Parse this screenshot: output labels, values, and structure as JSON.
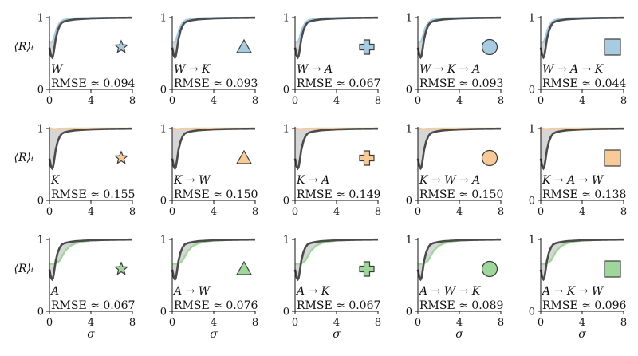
{
  "colors": {
    "W": "#a7cbe0",
    "K": "#f7ca98",
    "A": "#9fd69a",
    "reference": "#4b4b4b",
    "shade": "#cfcfcf"
  },
  "chart_data": {
    "type": "line",
    "layout": "grid 3 rows x 5 columns",
    "row_ylabel": "⟨R⟩ₜ",
    "xlabel": "σ",
    "xlim": [
      0,
      8
    ],
    "ylim": [
      0,
      1
    ],
    "xticks": [
      "0",
      "4",
      "8"
    ],
    "yticks": [
      "0",
      "1"
    ],
    "panels": [
      {
        "row": 0,
        "col": 0,
        "label": "W",
        "rmse": "RMSE ≈ 0.094",
        "color_key": "W",
        "marker": "star"
      },
      {
        "row": 0,
        "col": 1,
        "label": "W → K",
        "rmse": "RMSE ≈ 0.093",
        "color_key": "W",
        "marker": "triangle"
      },
      {
        "row": 0,
        "col": 2,
        "label": "W → A",
        "rmse": "RMSE ≈ 0.067",
        "color_key": "W",
        "marker": "plus"
      },
      {
        "row": 0,
        "col": 3,
        "label": "W → K → A",
        "rmse": "RMSE ≈ 0.093",
        "color_key": "W",
        "marker": "circle"
      },
      {
        "row": 0,
        "col": 4,
        "label": "W → A → K",
        "rmse": "RMSE ≈ 0.044",
        "color_key": "W",
        "marker": "square"
      },
      {
        "row": 1,
        "col": 0,
        "label": "K",
        "rmse": "RMSE ≈ 0.155",
        "color_key": "K",
        "marker": "star"
      },
      {
        "row": 1,
        "col": 1,
        "label": "K → W",
        "rmse": "RMSE ≈ 0.150",
        "color_key": "K",
        "marker": "triangle"
      },
      {
        "row": 1,
        "col": 2,
        "label": "K → A",
        "rmse": "RMSE ≈ 0.149",
        "color_key": "K",
        "marker": "plus"
      },
      {
        "row": 1,
        "col": 3,
        "label": "K → W → A",
        "rmse": "RMSE ≈ 0.150",
        "color_key": "K",
        "marker": "circle"
      },
      {
        "row": 1,
        "col": 4,
        "label": "K → A → W",
        "rmse": "RMSE ≈ 0.138",
        "color_key": "K",
        "marker": "square"
      },
      {
        "row": 2,
        "col": 0,
        "label": "A",
        "rmse": "RMSE ≈ 0.067",
        "color_key": "A",
        "marker": "star"
      },
      {
        "row": 2,
        "col": 1,
        "label": "A → W",
        "rmse": "RMSE ≈ 0.076",
        "color_key": "A",
        "marker": "triangle"
      },
      {
        "row": 2,
        "col": 2,
        "label": "A → K",
        "rmse": "RMSE ≈ 0.067",
        "color_key": "A",
        "marker": "plus"
      },
      {
        "row": 2,
        "col": 3,
        "label": "A → W → K",
        "rmse": "RMSE ≈ 0.089",
        "color_key": "A",
        "marker": "circle"
      },
      {
        "row": 2,
        "col": 4,
        "label": "A → K → W",
        "rmse": "RMSE ≈ 0.096",
        "color_key": "A",
        "marker": "square"
      }
    ],
    "reference_curve": {
      "x": [
        0,
        0.15,
        0.25,
        0.35,
        0.45,
        0.6,
        0.8,
        1.0,
        1.2,
        1.5,
        2.0,
        2.5,
        3.0,
        4.0,
        5.0,
        6.0,
        8.0
      ],
      "y": [
        0.58,
        0.47,
        0.44,
        0.46,
        0.55,
        0.7,
        0.82,
        0.89,
        0.93,
        0.95,
        0.965,
        0.975,
        0.98,
        0.988,
        0.992,
        0.995,
        0.998
      ]
    },
    "model_curves": {
      "W": {
        "x": [
          0,
          0.3,
          0.5,
          0.7,
          1.0,
          1.3,
          2.0,
          3.0,
          4.0,
          6.0,
          8.0
        ],
        "y": [
          0.66,
          0.66,
          0.75,
          0.85,
          0.93,
          0.965,
          0.985,
          0.993,
          0.996,
          0.998,
          0.999
        ]
      },
      "K": {
        "x": [
          0,
          0.25,
          0.45,
          0.7,
          1.0,
          1.5,
          2.0,
          3.0,
          4.0,
          6.0,
          8.0
        ],
        "y": [
          1.0,
          1.0,
          0.99,
          0.995,
          0.998,
          0.999,
          1.0,
          1.0,
          1.0,
          1.0,
          1.0
        ]
      },
      "A": {
        "x": [
          0,
          0.4,
          0.8,
          1.0,
          1.2,
          1.5,
          2.0,
          2.5,
          3.0,
          4.0,
          6.0,
          8.0
        ],
        "y": [
          0.66,
          0.66,
          0.68,
          0.71,
          0.76,
          0.84,
          0.91,
          0.945,
          0.965,
          0.985,
          0.995,
          0.998
        ]
      }
    }
  }
}
